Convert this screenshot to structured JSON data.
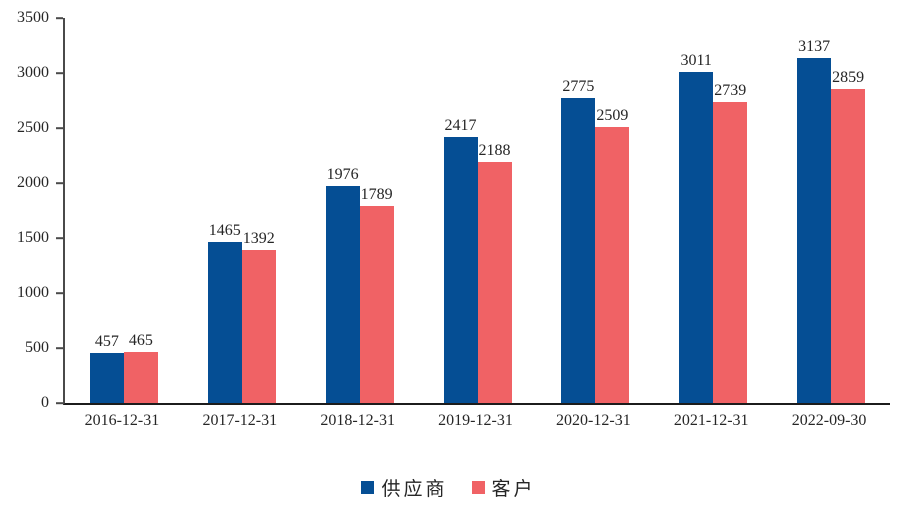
{
  "chart_data": {
    "type": "bar",
    "title": "",
    "categories": [
      "2016-12-31",
      "2017-12-31",
      "2018-12-31",
      "2019-12-31",
      "2020-12-31",
      "2021-12-31",
      "2022-09-30"
    ],
    "series": [
      {
        "name": "供应商",
        "color": "#054E94",
        "values": [
          457,
          1465,
          1976,
          2417,
          2775,
          3011,
          3137
        ]
      },
      {
        "name": "客户",
        "color": "#F06265",
        "values": [
          465,
          1392,
          1789,
          2188,
          2509,
          2739,
          2859
        ]
      }
    ],
    "ylim": [
      0,
      3500
    ],
    "yticks": [
      0,
      500,
      1000,
      1500,
      2000,
      2500,
      3000,
      3500
    ],
    "value_labels_shown": true,
    "grid": false,
    "legend_position": "bottom",
    "xlabel": "",
    "ylabel": ""
  }
}
